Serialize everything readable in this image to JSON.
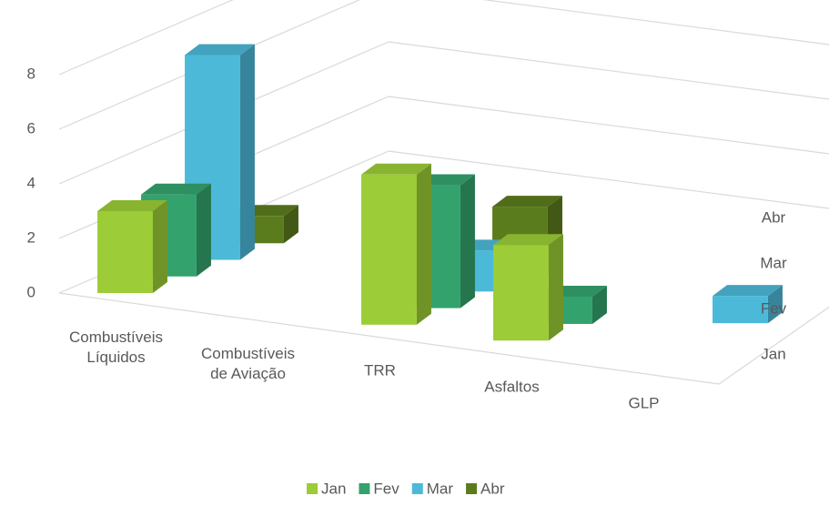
{
  "chart_data": {
    "type": "bar3d",
    "categories": [
      "Combustíveis Líquidos",
      "Combustíveis de Aviação",
      "TRR",
      "Asfaltos",
      "GLP"
    ],
    "series": [
      {
        "name": "Jan",
        "color": "#9ccc37",
        "values": [
          3,
          null,
          5.5,
          3.5,
          null
        ]
      },
      {
        "name": "Fev",
        "color": "#34a26d",
        "values": [
          3,
          null,
          4.5,
          1,
          null
        ]
      },
      {
        "name": "Mar",
        "color": "#4cb9d8",
        "values": [
          7.5,
          null,
          1.5,
          null,
          1
        ]
      },
      {
        "name": "Abr",
        "color": "#5b7c1d",
        "values": [
          1,
          null,
          2.5,
          null,
          null
        ]
      }
    ],
    "ylim": [
      0,
      8
    ],
    "yticks": [
      0,
      2,
      4,
      6,
      8
    ],
    "grid": true,
    "legend": "bottom"
  }
}
